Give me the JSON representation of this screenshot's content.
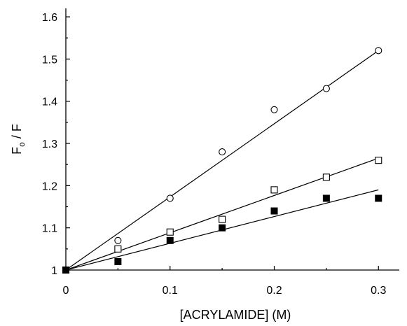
{
  "chart_data": {
    "type": "scatter",
    "xlabel": "[ACRYLAMIDE] (M)",
    "ylabel": {
      "main": "F",
      "sub": "o",
      "rest": " / F"
    },
    "xlim": [
      0,
      0.32
    ],
    "ylim": [
      1,
      1.62
    ],
    "xticks": [
      0,
      0.1,
      0.2,
      0.3
    ],
    "xtick_labels": [
      "0",
      "0.1",
      "0.2",
      "0.3"
    ],
    "yticks": [
      1,
      1.1,
      1.2,
      1.3,
      1.4,
      1.5,
      1.6
    ],
    "ytick_labels": [
      "1",
      "1.1",
      "1.2",
      "1.3",
      "1.4",
      "1.5",
      "1.6"
    ],
    "grid": false,
    "legend": "none",
    "series": [
      {
        "marker": "open-circle",
        "x": [
          0,
          0.05,
          0.1,
          0.15,
          0.2,
          0.25,
          0.3
        ],
        "y": [
          1.0,
          1.07,
          1.17,
          1.28,
          1.38,
          1.43,
          1.52
        ],
        "fit": {
          "x": [
            0,
            0.3
          ],
          "y": [
            1.0,
            1.52
          ]
        }
      },
      {
        "marker": "open-square",
        "x": [
          0,
          0.05,
          0.1,
          0.15,
          0.2,
          0.25,
          0.3
        ],
        "y": [
          1.0,
          1.05,
          1.09,
          1.12,
          1.19,
          1.22,
          1.26
        ],
        "fit": {
          "x": [
            0,
            0.3
          ],
          "y": [
            1.0,
            1.265
          ]
        }
      },
      {
        "marker": "filled-square",
        "x": [
          0,
          0.05,
          0.1,
          0.15,
          0.2,
          0.25,
          0.3
        ],
        "y": [
          1.0,
          1.02,
          1.07,
          1.1,
          1.14,
          1.17,
          1.17
        ],
        "fit": {
          "x": [
            0,
            0.3
          ],
          "y": [
            1.0,
            1.19
          ]
        }
      }
    ]
  }
}
